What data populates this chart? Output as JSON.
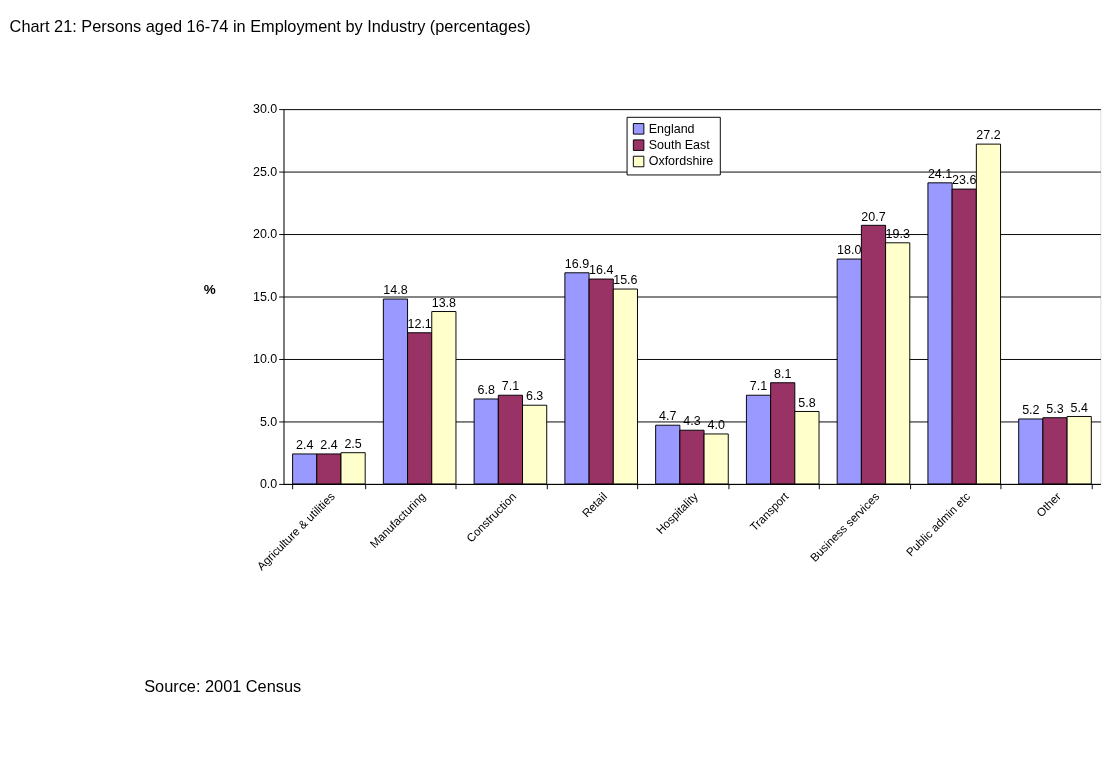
{
  "chart_data": {
    "type": "bar",
    "title": "Chart 21:  Persons aged 16-74 in Employment by Industry (percentages)",
    "ylabel": "%",
    "categories": [
      "Agriculture & utilities",
      "Manufacturing",
      "Construction",
      "Retail",
      "Hospitality",
      "Transport",
      "Business services",
      "Public admin etc",
      "Other"
    ],
    "series": [
      {
        "name": "England",
        "color": "#9999ff",
        "values": [
          2.4,
          14.8,
          6.8,
          16.9,
          4.7,
          7.1,
          18.0,
          24.1,
          5.2
        ],
        "value_labels": [
          "2.4",
          "14.8",
          "6.8",
          "16.9",
          "4.7",
          "7.1",
          "18.0",
          "24.1",
          "5.2"
        ]
      },
      {
        "name": "South East",
        "color": "#993366",
        "values": [
          2.4,
          12.1,
          7.1,
          16.4,
          4.3,
          8.1,
          20.7,
          23.6,
          5.3
        ],
        "value_labels": [
          "2.4",
          "12.1",
          "7.1",
          "16.4",
          "4.3",
          "8.1",
          "20.7",
          "23.6",
          "5.3"
        ]
      },
      {
        "name": "Oxfordshire",
        "color": "#ffffcc",
        "values": [
          2.5,
          13.8,
          6.3,
          15.6,
          4.0,
          5.8,
          19.3,
          27.2,
          5.4
        ],
        "value_labels": [
          "2.5",
          "13.8",
          "6.3",
          "15.6",
          "4.0",
          "5.8",
          "19.3",
          "27.2",
          "5.4"
        ]
      }
    ],
    "ylim": [
      0,
      30
    ],
    "yticks": [
      {
        "value": 0,
        "label": "0.0"
      },
      {
        "value": 5,
        "label": "5.0"
      },
      {
        "value": 10,
        "label": "10.0"
      },
      {
        "value": 15,
        "label": "15.0"
      },
      {
        "value": 20,
        "label": "20.0"
      },
      {
        "value": 25,
        "label": "25.0"
      },
      {
        "value": 30,
        "label": "30.0"
      }
    ],
    "grid": "y",
    "legend": "top",
    "annotations": [
      "Source: 2001 Census"
    ]
  }
}
